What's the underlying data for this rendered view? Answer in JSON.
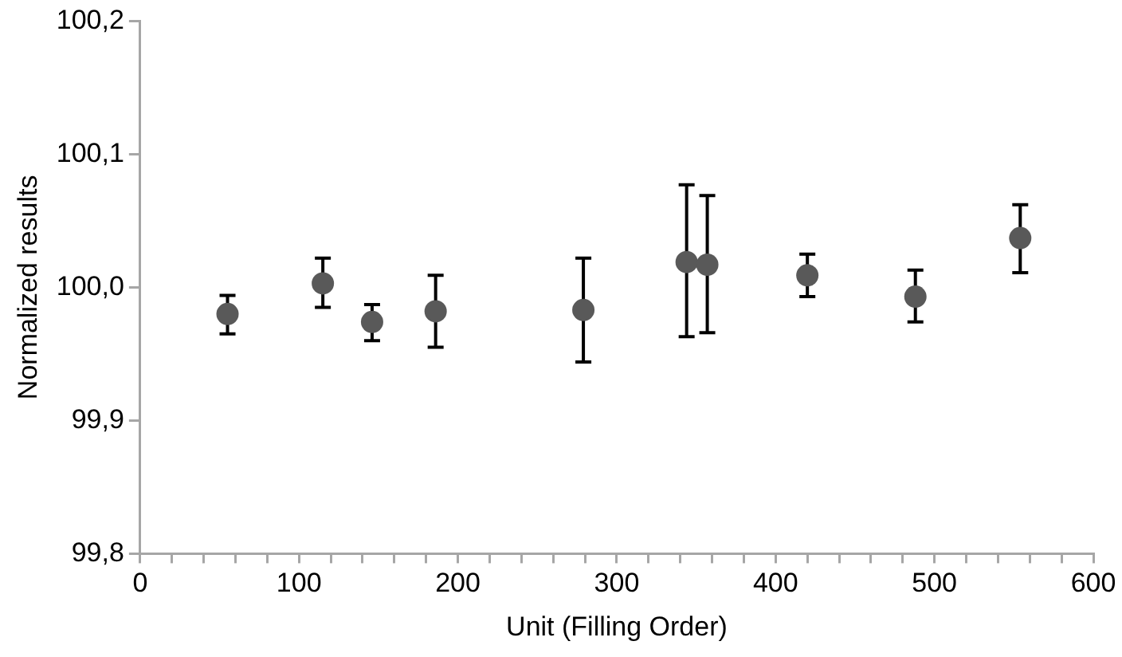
{
  "chart_data": {
    "type": "scatter",
    "xlabel": "Unit (Filling Order)",
    "ylabel": "Normalized results",
    "marker": "circle",
    "x": [
      55,
      115,
      146,
      186,
      279,
      344,
      357,
      420,
      488,
      554
    ],
    "series": [
      {
        "color": "#595959",
        "values": [
          99.98,
          100.003,
          99.974,
          99.982,
          99.983,
          100.019,
          100.017,
          100.009,
          99.993,
          100.037
        ],
        "errors": [
          [
            99.965,
            99.994
          ],
          [
            99.985,
            100.022
          ],
          [
            99.96,
            99.987
          ],
          [
            99.955,
            100.009
          ],
          [
            99.944,
            100.022
          ],
          [
            99.963,
            100.077
          ],
          [
            99.966,
            100.069
          ],
          [
            99.993,
            100.025
          ],
          [
            99.974,
            100.013
          ],
          [
            100.011,
            100.062
          ]
        ]
      }
    ],
    "xlim": [
      0,
      600
    ],
    "xticks": [
      0,
      {
        "value": 20,
        "label": null
      },
      {
        "value": 40,
        "label": null
      },
      {
        "value": 60,
        "label": null
      },
      {
        "value": 80,
        "label": null
      },
      100,
      {
        "value": 120,
        "label": null
      },
      {
        "value": 140,
        "label": null
      },
      {
        "value": 160,
        "label": null
      },
      {
        "value": 180,
        "label": null
      },
      200,
      {
        "value": 220,
        "label": null
      },
      {
        "value": 240,
        "label": null
      },
      {
        "value": 260,
        "label": null
      },
      {
        "value": 280,
        "label": null
      },
      300,
      {
        "value": 320,
        "label": null
      },
      {
        "value": 340,
        "label": null
      },
      {
        "value": 360,
        "label": null
      },
      {
        "value": 380,
        "label": null
      },
      400,
      {
        "value": 420,
        "label": null
      },
      {
        "value": 440,
        "label": null
      },
      {
        "value": 460,
        "label": null
      },
      {
        "value": 480,
        "label": null
      },
      500,
      {
        "value": 520,
        "label": null
      },
      {
        "value": 540,
        "label": null
      },
      {
        "value": 560,
        "label": null
      },
      {
        "value": 580,
        "label": null
      },
      600
    ],
    "ylim": [
      99.8,
      100.2
    ],
    "yticks": [
      {
        "value": 99.8,
        "label": "99,8"
      },
      {
        "value": 99.9,
        "label": "99,9"
      },
      {
        "value": 100,
        "label": "100,0"
      },
      {
        "value": 100.1,
        "label": "100,1"
      },
      {
        "value": 100.2,
        "label": "100,2"
      }
    ],
    "grid": false,
    "legend": false
  }
}
